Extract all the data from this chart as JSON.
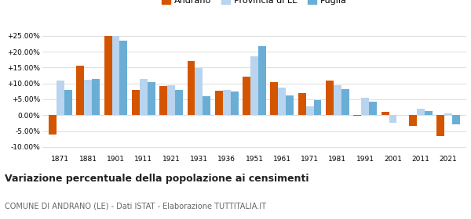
{
  "years": [
    1871,
    1881,
    1901,
    1911,
    1921,
    1931,
    1936,
    1951,
    1961,
    1971,
    1981,
    1991,
    2001,
    2011,
    2021
  ],
  "andrano": [
    -6.2,
    15.5,
    25.0,
    8.0,
    9.2,
    17.0,
    7.8,
    12.2,
    10.5,
    7.0,
    11.0,
    -0.2,
    1.0,
    -3.5,
    -6.5
  ],
  "provincia_le": [
    11.0,
    11.2,
    25.0,
    11.5,
    9.5,
    14.8,
    8.0,
    18.5,
    8.8,
    2.8,
    9.5,
    5.5,
    -2.5,
    2.0,
    0.5
  ],
  "puglia": [
    8.0,
    11.5,
    23.5,
    10.5,
    8.0,
    6.0,
    7.5,
    21.8,
    6.2,
    4.8,
    8.2,
    4.2,
    0.0,
    1.2,
    -3.0
  ],
  "color_andrano": "#d45500",
  "color_provincia": "#b8d4ee",
  "color_puglia": "#6aaed6",
  "title": "Variazione percentuale della popolazione ai censimenti",
  "subtitle": "COMUNE DI ANDRANO (LE) - Dati ISTAT - Elaborazione TUTTITALIA.IT",
  "yticks": [
    -10,
    -5,
    0,
    5,
    10,
    15,
    20,
    25
  ],
  "ytick_labels": [
    "-10.00%",
    "-5.00%",
    "0.00%",
    "+5.00%",
    "+10.00%",
    "+15.00%",
    "+20.00%",
    "+25.00%"
  ],
  "ylim": [
    -12,
    28
  ],
  "background_color": "#ffffff",
  "grid_color": "#d0d0d0"
}
